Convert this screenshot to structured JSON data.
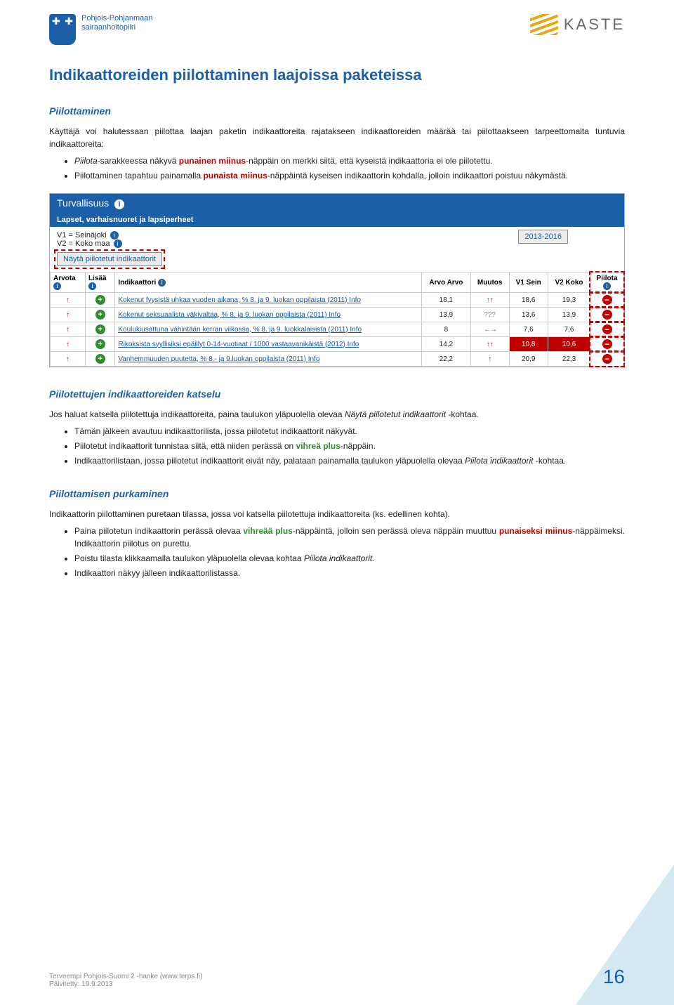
{
  "header": {
    "left_line1": "Pohjois-Pohjanmaan",
    "left_line2": "sairaanhoitopiiri",
    "right_text": "KASTE"
  },
  "title": "Indikaattoreiden piilottaminen laajoissa paketeissa",
  "s1": {
    "heading": "Piilottaminen",
    "intro": "Käyttäjä voi halutessaan piilottaa laajan paketin indikaattoreita rajatakseen indikaattoreiden määrää tai piilottaakseen tarpeettomalta tuntuvia indikaattoreita:",
    "b1a": "Piilota",
    "b1b": "-sarakkeessa näkyvä ",
    "b1c": "punainen miinus",
    "b1d": "-näppäin on merkki siitä, että kyseistä indikaattoria ei ole piilotettu.",
    "b2a": "Piilottaminen tapahtuu painamalla ",
    "b2b": "punaista miinus",
    "b2c": "-näppäintä kyseisen indikaattorin kohdalla, jolloin indikaattori poistuu näkymästä."
  },
  "shot": {
    "bluebar": "Turvallisuus",
    "toolbar": "Lapset, varhaisnuoret ja lapsiperheet",
    "v1": "V1 = Seinäjoki",
    "v2": "V2 = Koko maa",
    "nayta_btn": "Näytä piilotetut indikaattorit",
    "year_label": "2013-2016",
    "cols": {
      "arvota": "Arvota",
      "lisaa": "Lisää",
      "indik": "Indikaattori",
      "arvo": "Arvo\nArvo",
      "muutos": "Muutos",
      "v1": "V1\nSein",
      "v2": "V2\nKoko",
      "piilota": "Piilota"
    },
    "rows": [
      {
        "name": "Kokenut fyysistä uhkaa vuoden aikana, % 8. ja 9. luokan oppilaista (2011) Info",
        "arvo": "18,1",
        "muutos": "up2",
        "v1": "18,6",
        "v2": "19,3"
      },
      {
        "name": "Kokenut seksuaalista väkivaltaa, % 8. ja 9. luokan oppilaista (2011) Info",
        "arvo": "13,9",
        "muutos": "q",
        "v1": "13,6",
        "v2": "13,9"
      },
      {
        "name": "Koulukiusattuna vähintään kerran viikossa, % 8. ja 9. luokkalaisista (2011) Info",
        "arvo": "8",
        "muutos": "lr",
        "v1": "7,6",
        "v2": "7,6"
      },
      {
        "name": "Rikoksista syyllisiksi epäillyt 0-14-vuotiaat / 1000 vastaavanikäistä (2012) Info",
        "arvo": "14,2",
        "muutos": "up2",
        "v1": "10,8",
        "v2": "10,6",
        "red": true
      },
      {
        "name": "Vanhemmuuden puutetta, % 8.- ja 9.luokan oppilaista (2011) Info",
        "arvo": "22,2",
        "muutos": "up1",
        "v1": "20,9",
        "v2": "22,3"
      }
    ]
  },
  "s2": {
    "heading": "Piilotettujen indikaattoreiden katselu",
    "intro_a": "Jos haluat katsella piilotettuja indikaattoreita, paina taulukon yläpuolella olevaa ",
    "intro_b": "Näytä piilotetut indikaattorit",
    "intro_c": " -kohtaa.",
    "b1": "Tämän jälkeen avautuu indikaattorilista, jossa piilotetut indikaattorit näkyvät.",
    "b2a": "Piilotetut indikaattorit tunnistaa siitä, että niiden perässä on ",
    "b2b": "vihreä plus",
    "b2c": "-näppäin.",
    "b3a": "Indikaattorilistaan, jossa piilotetut indikaattorit eivät näy, palataan painamalla taulukon yläpuolella olevaa ",
    "b3b": "Piilota indikaattorit",
    "b3c": " -kohtaa."
  },
  "s3": {
    "heading": "Piilottamisen purkaminen",
    "intro": "Indikaattorin piilottaminen puretaan tilassa, jossa voi katsella piilotettuja indikaattoreita (ks. edellinen kohta).",
    "b1a": "Paina piilotetun indikaattorin perässä olevaa ",
    "b1b": "vihreää plus",
    "b1c": "-näppäintä, jolloin sen perässä oleva näppäin muuttuu ",
    "b1d": "punaiseksi miinus",
    "b1e": "-näppäimeksi. Indikaattorin piilotus on purettu.",
    "b2a": "Poistu tilasta klikkaamalla taulukon yläpuolella olevaa kohtaa ",
    "b2b": "Piilota indikaattorit",
    "b2c": ".",
    "b3": "Indikaattori näkyy jälleen indikaattorilistassa."
  },
  "footer": {
    "l1": "Terveempi Pohjois-Suomi 2 -hanke (www.terps.fi)",
    "l2": "Päivitetty: 19.9.2013",
    "page": "16"
  }
}
